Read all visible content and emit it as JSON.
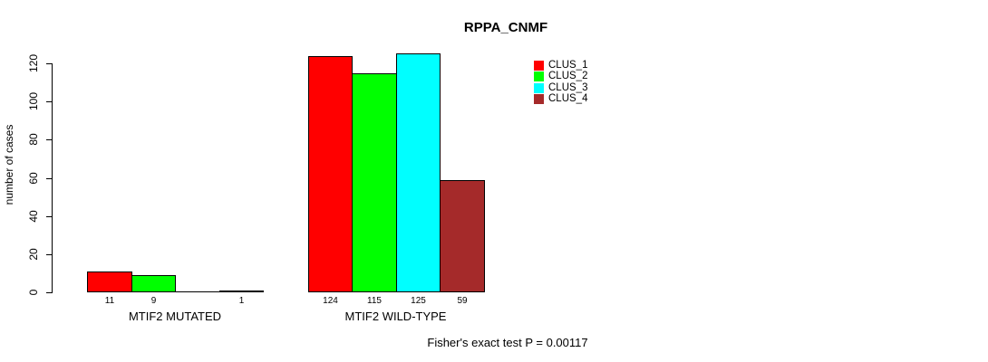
{
  "chart_data": {
    "type": "bar",
    "title": "RPPA_CNMF",
    "ylabel": "number of cases",
    "xlabel": "",
    "ylim": [
      0,
      125
    ],
    "yticks": [
      0,
      20,
      40,
      60,
      80,
      100,
      120
    ],
    "grid": false,
    "legend_position": "top-right",
    "series": [
      {
        "name": "CLUS_1",
        "color": "#FF0000"
      },
      {
        "name": "CLUS_2",
        "color": "#00FF00"
      },
      {
        "name": "CLUS_3",
        "color": "#00FFFF"
      },
      {
        "name": "CLUS_4",
        "color": "#A52A2A"
      }
    ],
    "groups": [
      {
        "label": "MTIF2 MUTATED",
        "values": [
          11,
          9,
          0,
          1
        ],
        "value_labels": [
          "11",
          "9",
          "",
          "1"
        ]
      },
      {
        "label": "MTIF2 WILD-TYPE",
        "values": [
          124,
          115,
          125,
          59
        ],
        "value_labels": [
          "124",
          "115",
          "125",
          "59"
        ]
      }
    ],
    "annotation": "Fisher's exact test P = 0.00117"
  },
  "colors": {
    "background": "#FFFFFF",
    "axis": "#000000",
    "bar_border": "#000000",
    "text": "#000000"
  }
}
